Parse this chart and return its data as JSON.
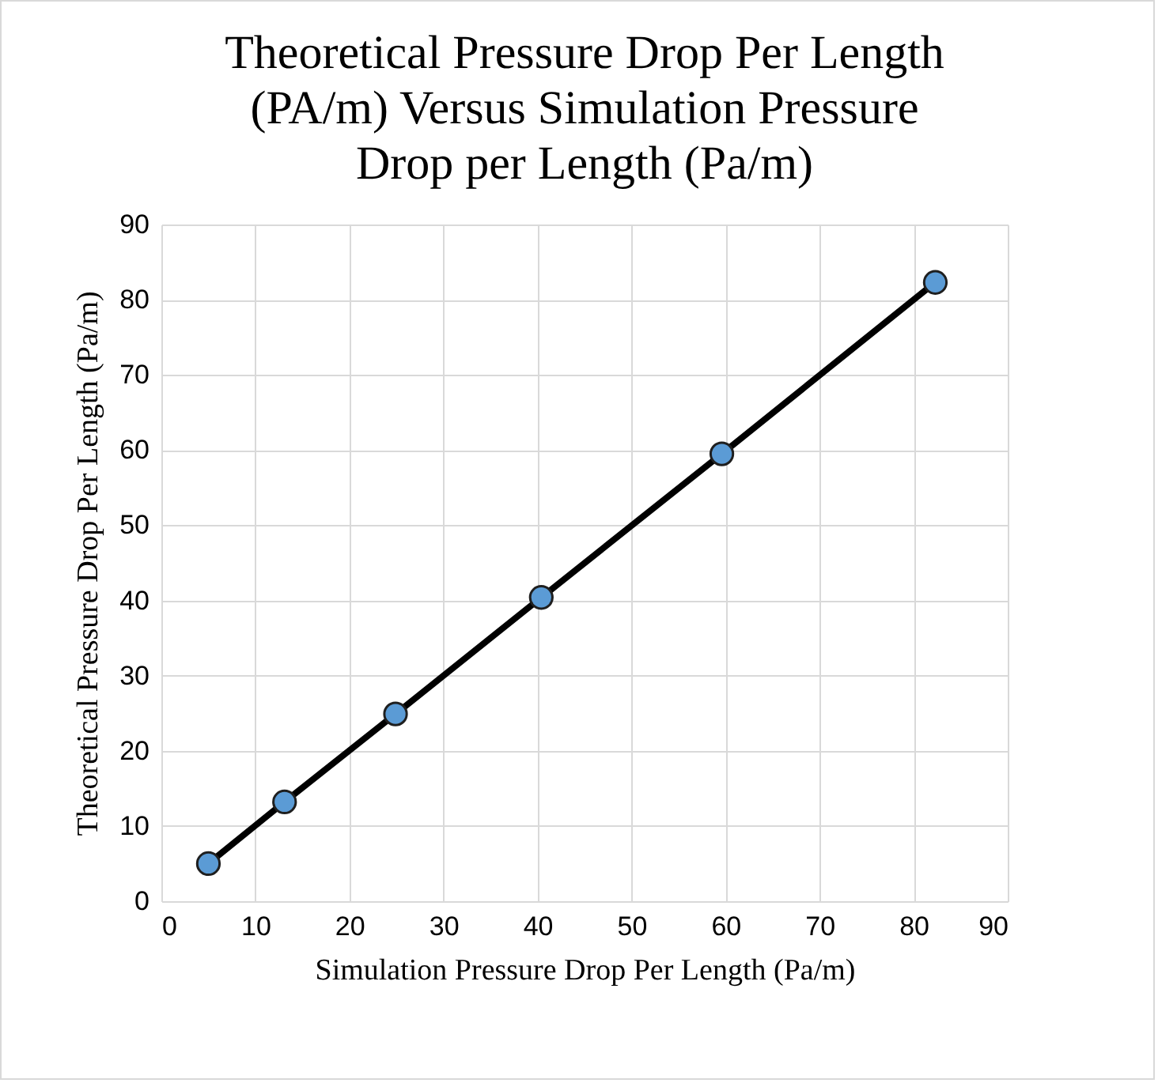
{
  "chart_data": {
    "type": "scatter",
    "title": [
      "Theoretical Pressure Drop Per Length",
      "(PA/m) Versus Simulation Pressure",
      "Drop per Length (Pa/m)"
    ],
    "xlabel": "Simulation Pressure Drop Per Length (Pa/m)",
    "ylabel": "Theoretical Pressure Drop Per Length (Pa/m)",
    "x": [
      5.0,
      13.1,
      24.9,
      40.4,
      59.6,
      82.3
    ],
    "series": [
      {
        "type": "line",
        "color": "#000000",
        "marker": "none",
        "values": [
          5.0,
          13.2,
          24.9,
          40.4,
          59.5,
          82.3
        ]
      },
      {
        "color": "#5b9bd5",
        "marker": "circle",
        "values": [
          5.0,
          13.2,
          24.9,
          40.4,
          59.5,
          82.3
        ]
      }
    ],
    "xlim": [
      0,
      90
    ],
    "xticks": [
      0,
      10,
      20,
      30,
      40,
      50,
      60,
      70,
      80,
      90
    ],
    "ylim": [
      0,
      90
    ],
    "yticks": [
      0,
      10,
      20,
      30,
      40,
      50,
      60,
      70,
      80,
      90
    ],
    "grid": true
  }
}
